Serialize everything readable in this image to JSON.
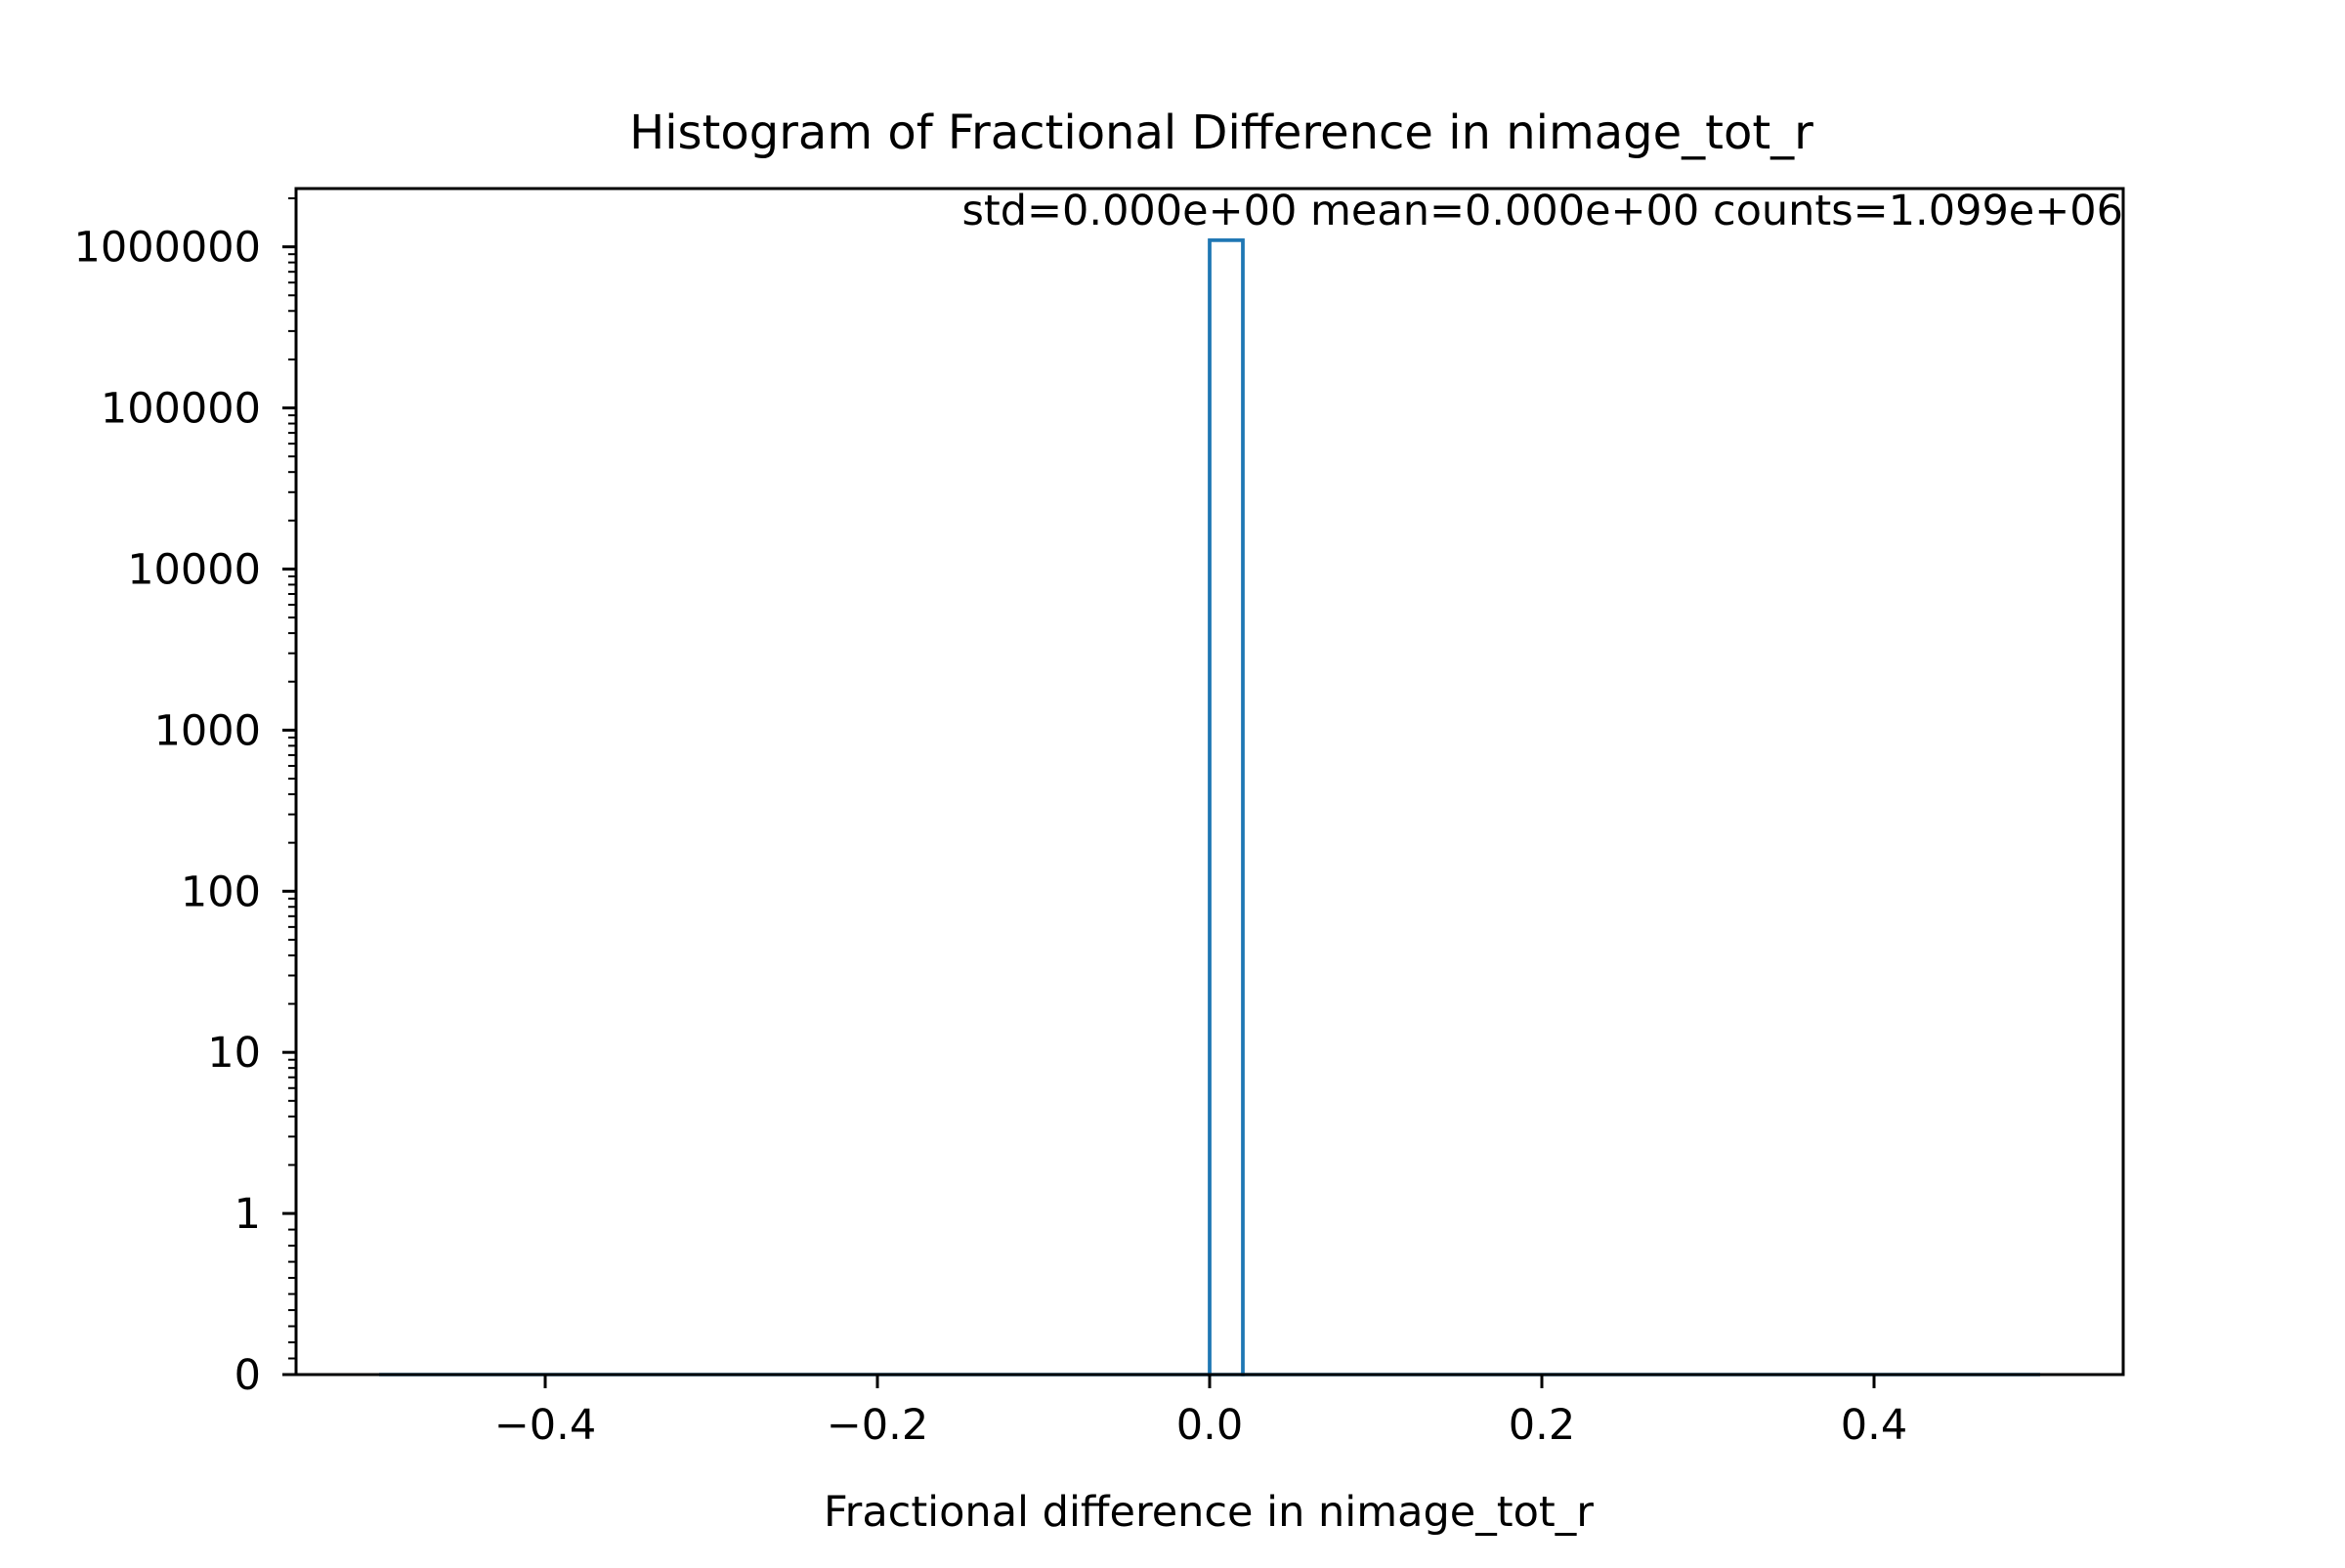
{
  "chart_data": {
    "type": "bar",
    "title": "Histogram of Fractional Difference in nimage_tot_r",
    "annotation": "std=0.000e+00 mean=0.000e+00 counts=1.099e+06",
    "xlabel": "Fractional difference in nimage_tot_r",
    "ylabel": "",
    "xlim": [
      -0.55,
      0.55
    ],
    "yscale": "symlog",
    "ylim": [
      0,
      2300000
    ],
    "grid": false,
    "legend": "none",
    "bin_edges": [
      -0.5,
      0.5
    ],
    "bin_width": 0.02,
    "histtype": "step",
    "bars": [
      {
        "x0": 0.0,
        "x1": 0.02,
        "value": 1099000
      }
    ],
    "xticks": [
      {
        "value": -0.4,
        "label": "−0.4"
      },
      {
        "value": -0.2,
        "label": "−0.2"
      },
      {
        "value": 0.0,
        "label": "0.0"
      },
      {
        "value": 0.2,
        "label": "0.2"
      },
      {
        "value": 0.4,
        "label": "0.4"
      }
    ],
    "yticks": [
      {
        "value": 0,
        "label": "0"
      },
      {
        "value": 1,
        "label": "1"
      },
      {
        "value": 10,
        "label": "10"
      },
      {
        "value": 100,
        "label": "100"
      },
      {
        "value": 1000,
        "label": "1000"
      },
      {
        "value": 10000,
        "label": "10000"
      },
      {
        "value": 100000,
        "label": "100000"
      },
      {
        "value": 1000000,
        "label": "1000000"
      }
    ],
    "colors": {
      "series": "#1f77b4",
      "axes": "#000000"
    }
  }
}
